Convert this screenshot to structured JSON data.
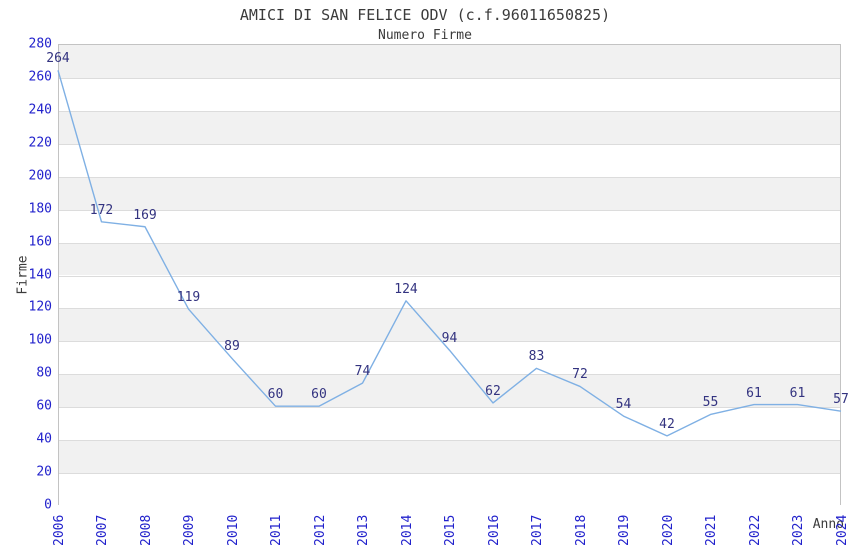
{
  "chart_data": {
    "type": "line",
    "title": "AMICI DI SAN FELICE ODV (c.f.96011650825)",
    "subtitle": "Numero Firme",
    "xlabel": "Anno",
    "ylabel": "Firme",
    "x": [
      2006,
      2007,
      2008,
      2009,
      2010,
      2011,
      2012,
      2013,
      2014,
      2015,
      2016,
      2017,
      2018,
      2019,
      2020,
      2021,
      2022,
      2023,
      2024
    ],
    "series": [
      {
        "name": "Numero Firme",
        "values": [
          264,
          172,
          169,
          119,
          89,
          60,
          60,
          74,
          124,
          94,
          62,
          83,
          72,
          54,
          42,
          55,
          61,
          61,
          57
        ]
      }
    ],
    "ylim": [
      0,
      280
    ],
    "ytick_step": 20,
    "grid": true,
    "legend_position": "none",
    "data_labels_visible": true,
    "colors": {
      "line": "#7fb0e4",
      "data_label": "#333380",
      "tick_label": "#2222cc",
      "title_text": "#3b3b3b",
      "band_gray": "#f1f1f1",
      "band_white": "#ffffff",
      "gridline": "#dcdcdc",
      "plot_border": "#c3c3c3",
      "background": "#ffffff"
    }
  }
}
